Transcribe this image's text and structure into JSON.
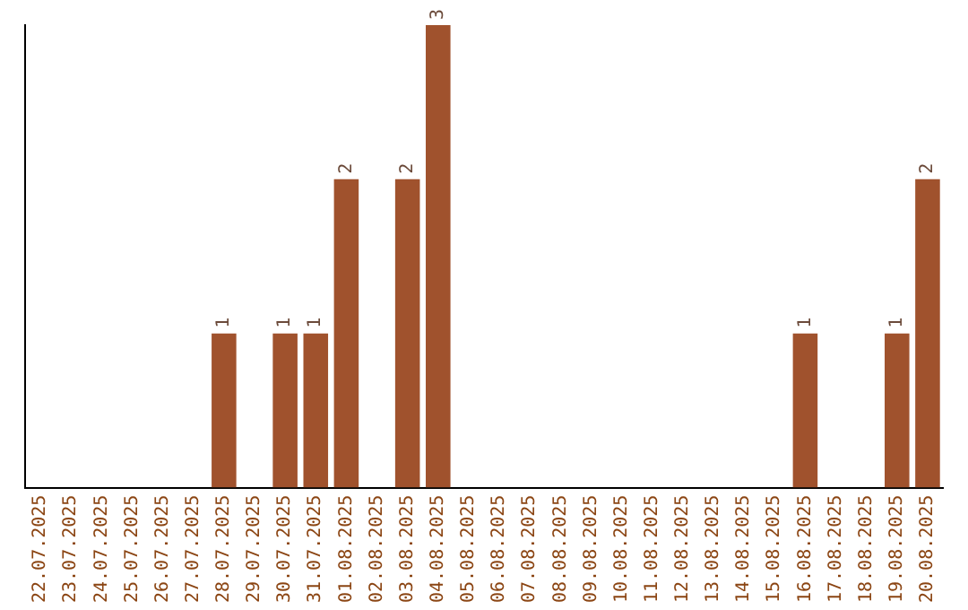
{
  "chart_data": {
    "type": "bar",
    "categories": [
      "22.07.2025",
      "23.07.2025",
      "24.07.2025",
      "25.07.2025",
      "26.07.2025",
      "27.07.2025",
      "28.07.2025",
      "29.07.2025",
      "30.07.2025",
      "31.07.2025",
      "01.08.2025",
      "02.08.2025",
      "03.08.2025",
      "04.08.2025",
      "05.08.2025",
      "06.08.2025",
      "07.08.2025",
      "08.08.2025",
      "09.08.2025",
      "10.08.2025",
      "11.08.2025",
      "12.08.2025",
      "13.08.2025",
      "14.08.2025",
      "15.08.2025",
      "16.08.2025",
      "17.08.2025",
      "18.08.2025",
      "19.08.2025",
      "20.08.2025"
    ],
    "values": [
      0,
      0,
      0,
      0,
      0,
      0,
      1,
      0,
      1,
      1,
      2,
      0,
      2,
      3,
      0,
      0,
      0,
      0,
      0,
      0,
      0,
      0,
      0,
      0,
      0,
      1,
      0,
      0,
      1,
      2
    ],
    "value_labels": [
      null,
      null,
      null,
      null,
      null,
      null,
      "1",
      null,
      "1",
      "1",
      "2",
      null,
      "2",
      "3",
      null,
      null,
      null,
      null,
      null,
      null,
      null,
      null,
      null,
      null,
      null,
      "1",
      null,
      null,
      "1",
      "2"
    ],
    "color": "#a0522d",
    "grid": false,
    "legend": false
  }
}
